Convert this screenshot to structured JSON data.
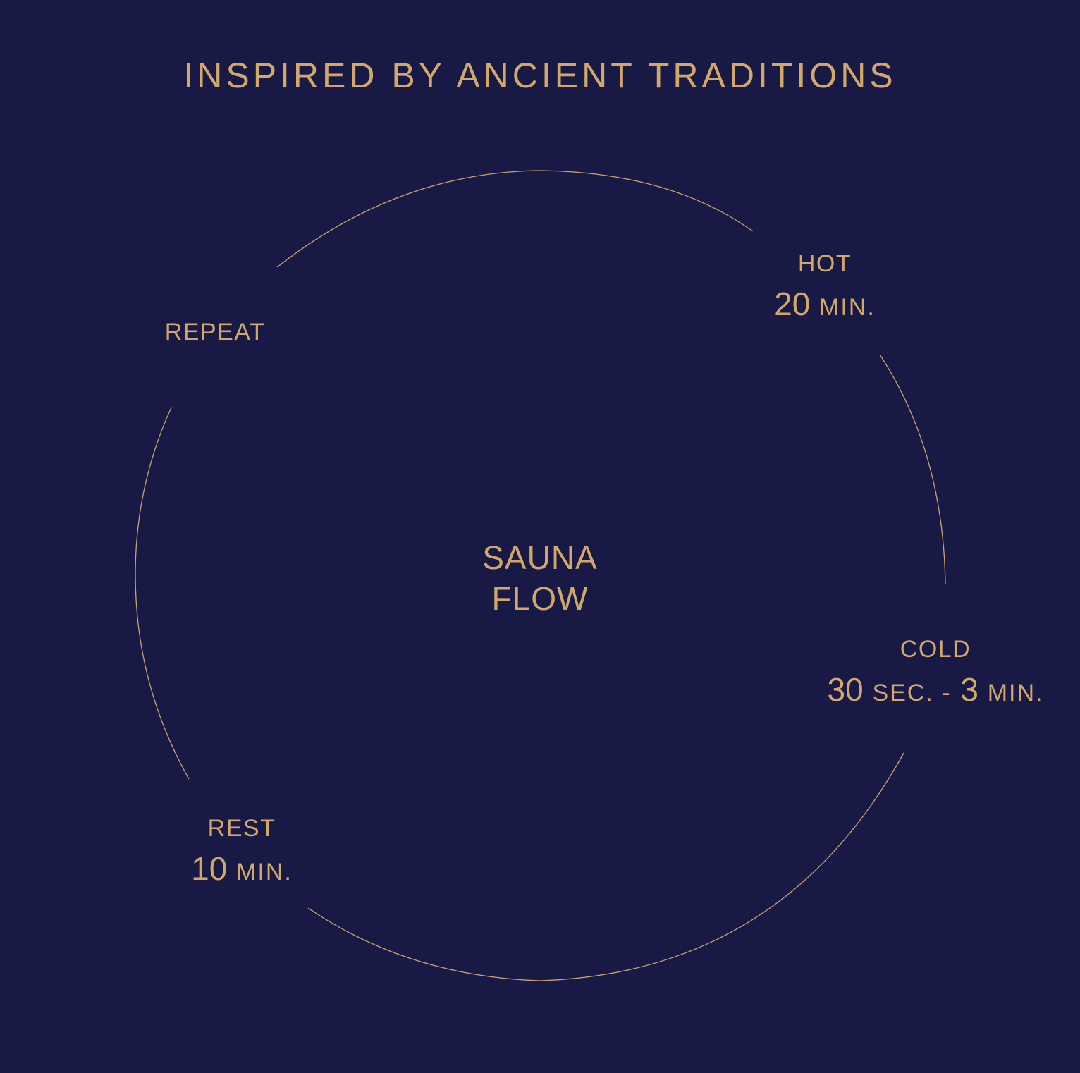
{
  "title": "INSPIRED BY ANCIENT TRADITIONS",
  "center": {
    "line1": "SAUNA",
    "line2": "FLOW"
  },
  "stages": {
    "hot": {
      "name": "HOT",
      "dur_num": "20",
      "dur_unit": "MIN."
    },
    "cold": {
      "name": "COLD",
      "dur_num1": "30",
      "dur_unit1": "SEC. -",
      "dur_num2": "3",
      "dur_unit2": "MIN."
    },
    "rest": {
      "name": "REST",
      "dur_num": "10",
      "dur_unit": "MIN."
    },
    "repeat": {
      "name": "REPEAT"
    }
  },
  "colors": {
    "background": "#191946",
    "accent": "#D2A86A"
  }
}
